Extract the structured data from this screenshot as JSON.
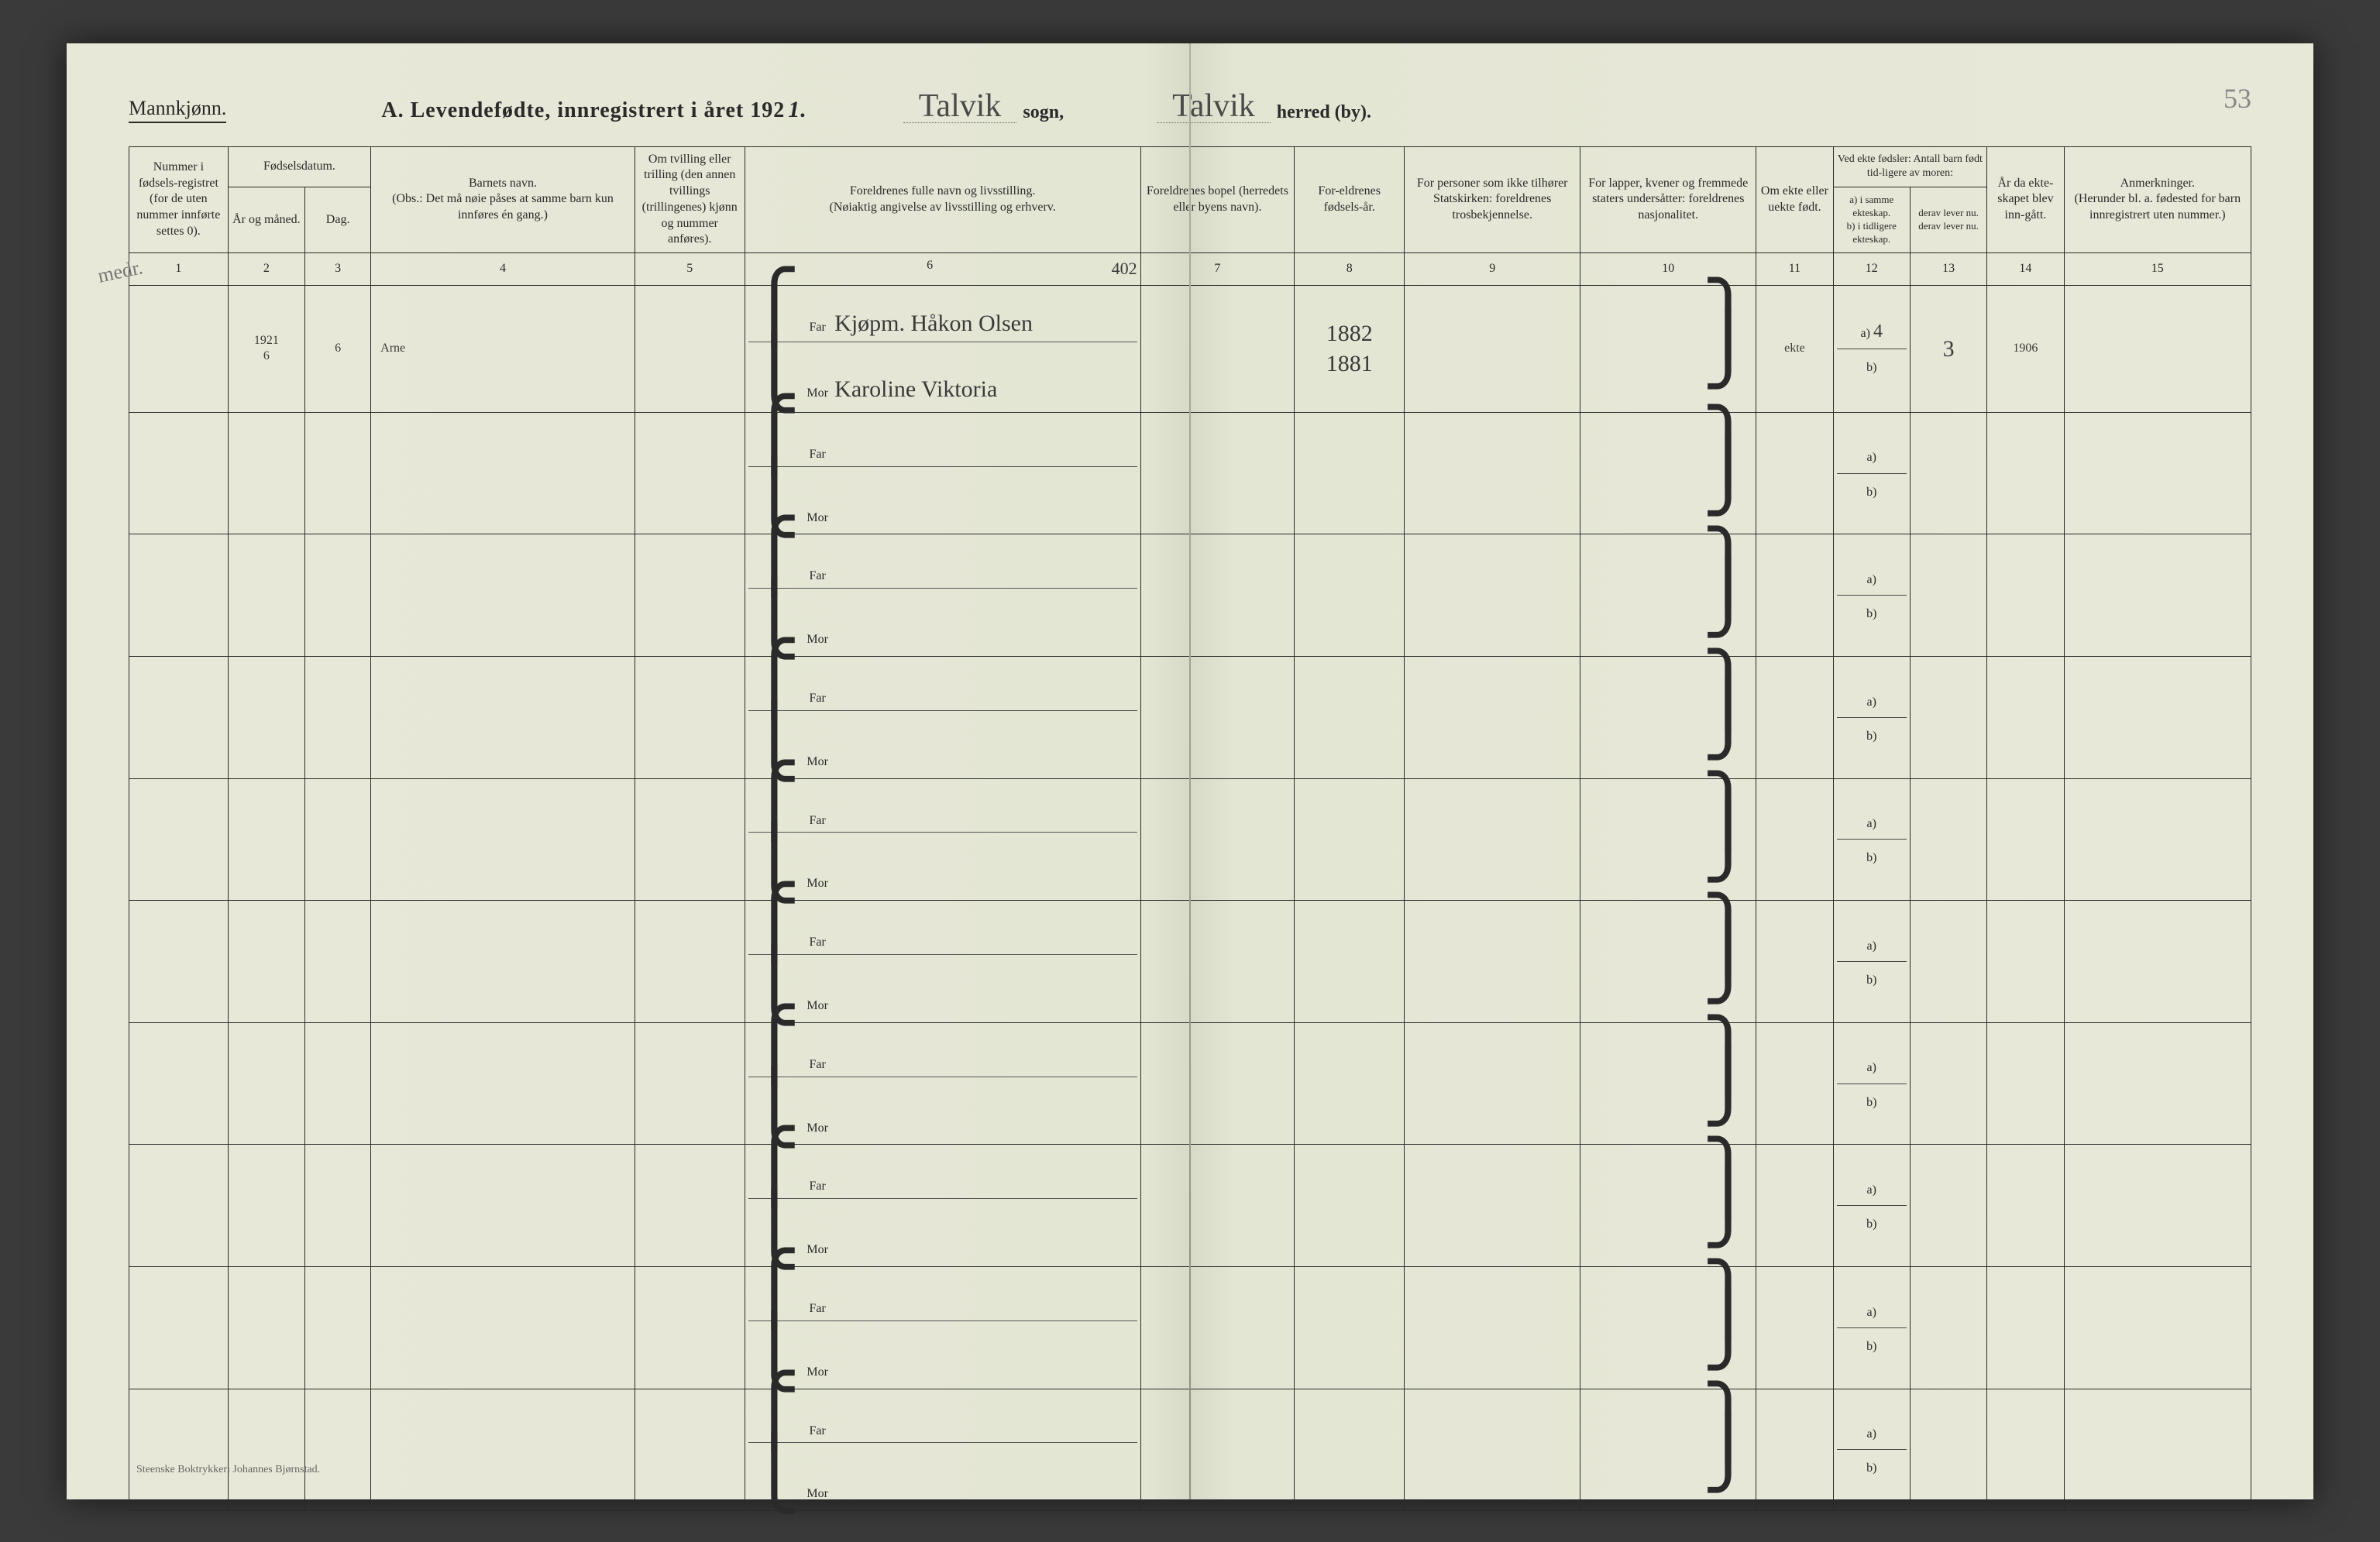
{
  "page_number": "53",
  "gender_label": "Mannkjønn.",
  "title_prefix": "A.  Levendefødte, innregistrert i året 192",
  "title_year_suffix": "1.",
  "sogn_handwritten": "Talvik",
  "sogn_label": "sogn,",
  "herred_handwritten": "Talvik",
  "herred_label": "herred (by).",
  "headers": {
    "c1": "Nummer i fødsels-registret (for de uten nummer innførte settes 0).",
    "c2_group": "Fødselsdatum.",
    "c2a": "År og måned.",
    "c2b": "Dag.",
    "c4": "Barnets navn.\n(Obs.: Det må nøie påses at samme barn kun innføres én gang.)",
    "c5": "Om tvilling eller trilling (den annen tvillings (trillingenes) kjønn og nummer anføres).",
    "c6": "Foreldrenes fulle navn og livsstilling.\n(Nøiaktig angivelse av livsstilling og erhverv.",
    "c7": "Foreldrenes bopel (herredets eller byens navn).",
    "c8": "For-eldrenes fødsels-år.",
    "c9": "For personer som ikke tilhører Statskirken: foreldrenes trosbekjennelse.",
    "c10": "For lapper, kvener og fremmede staters undersåtter: foreldrenes nasjonalitet.",
    "c11": "Om ekte eller uekte født.",
    "c12_group": "Ved ekte fødsler: Antall barn født tid-ligere av moren:",
    "c12a": "a) i samme ekteskap.",
    "c12b": "b) i tidligere ekteskap.",
    "c13a": "derav lever nu.",
    "c13b": "derav lever nu.",
    "c14": "År da ekte-skapet blev inn-gått.",
    "c15": "Anmerkninger.\n(Herunder bl. a. fødested for barn innregistrert uten nummer.)"
  },
  "column_numbers": [
    "1",
    "2",
    "3",
    "4",
    "5",
    "6",
    "7",
    "8",
    "9",
    "10",
    "11",
    "12",
    "13",
    "14",
    "15"
  ],
  "far_label": "Far",
  "mor_label": "Mor",
  "ab_labels": {
    "a": "a)",
    "b": "b)"
  },
  "margin_note_left": "medr.",
  "handwritten_annotation_c6": "402",
  "first_row": {
    "year_month": "1921\n6",
    "day": "6",
    "child_name": "Arne",
    "far_name": "Kjøpm. Håkon Olsen",
    "mor_name": "Karoline Viktoria",
    "far_year": "1882",
    "mor_year": "1881",
    "ekte": "ekte",
    "c12a": "4",
    "c13": "3",
    "c14": "1906"
  },
  "empty_rows_count": 9,
  "footer_printer": "Steenske Boktrykkeri Johannes Bjørnstad.",
  "colors": {
    "paper": "#e6e7d6",
    "ink": "#2a2a2a",
    "pencil": "#4a4a4a"
  }
}
